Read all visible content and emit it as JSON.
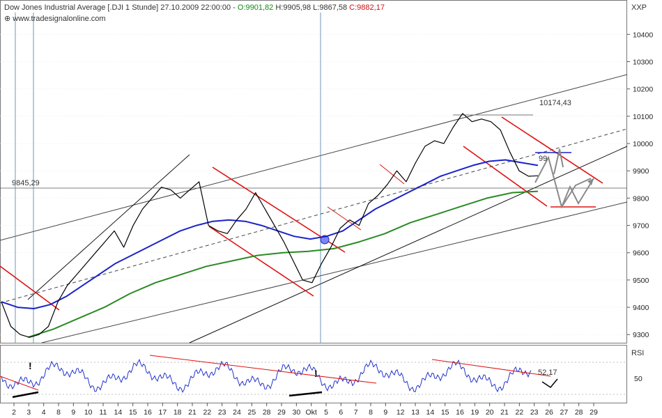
{
  "header": {
    "title": "Dow Jones Industrial Average [.DJI  1 Stunde] 27.10.2009 22:00:00 - ",
    "open": "O:9901,82",
    "high": "H:9905,98",
    "low": "L:9867,58",
    "close": "C:9882,17",
    "source": "www.tradesignalonline.com",
    "symbol": "XXP"
  },
  "rsi": {
    "label": "RSI",
    "tick": "50",
    "value_label": "52,17"
  },
  "annotations": {
    "hline_value": "9845,29",
    "peak_value": "10174,43",
    "partial_value": "99"
  },
  "colors": {
    "price": "#000000",
    "ma_fast": "#1a22c8",
    "ma_slow": "#2a8a22",
    "channel": "#e01010",
    "rsi": "#2233cc",
    "rsi_trend": "#e01010",
    "projection": "#888888"
  },
  "chart_data": {
    "type": "line",
    "title": "Dow Jones Industrial Average [.DJI  1 Stunde]",
    "timeframe": "1 Stunde",
    "xlabel": "",
    "ylabel": "",
    "ylim": [
      9270,
      10480
    ],
    "yticks": [
      9300,
      9400,
      9500,
      9600,
      9700,
      9800,
      9900,
      10000,
      10100,
      10200,
      10300,
      10400
    ],
    "ytick_labels": [
      "9300",
      "9400",
      "9500",
      "9600",
      "9700",
      "9800",
      "9900",
      "10000",
      "10100",
      "10200",
      "10300",
      "10400"
    ],
    "xtick_labels": [
      "2",
      "3",
      "4",
      "8",
      "9",
      "10",
      "11",
      "14",
      "15",
      "16",
      "17",
      "18",
      "21",
      "22",
      "23",
      "24",
      "25",
      "28",
      "29",
      "30",
      "Okt",
      "5",
      "6",
      "7",
      "8",
      "9",
      "12",
      "13",
      "14",
      "15",
      "16",
      "19",
      "20",
      "21",
      "22",
      "23",
      "26",
      "27",
      "28",
      "29"
    ],
    "grid": true,
    "series": [
      {
        "key": "price",
        "values": [
          9420,
          9330,
          9300,
          9290,
          9300,
          9330,
          9420,
          9480,
          9520,
          9560,
          9600,
          9640,
          9680,
          9620,
          9700,
          9760,
          9800,
          9840,
          9830,
          9800,
          9830,
          9860,
          9700,
          9680,
          9670,
          9720,
          9760,
          9820,
          9760,
          9700,
          9640,
          9570,
          9500,
          9490,
          9560,
          9620,
          9690,
          9720,
          9700,
          9780,
          9810,
          9850,
          9900,
          9860,
          9930,
          9990,
          10010,
          10000,
          10060,
          10110,
          10080,
          10090,
          10080,
          10050,
          9970,
          9900,
          9880,
          9882
        ]
      },
      {
        "key": "ma_fast",
        "values": [
          9420,
          9400,
          9395,
          9410,
          9440,
          9480,
          9520,
          9560,
          9590,
          9620,
          9650,
          9680,
          9700,
          9715,
          9720,
          9715,
          9700,
          9680,
          9660,
          9650,
          9660,
          9680,
          9720,
          9760,
          9790,
          9820,
          9850,
          9880,
          9900,
          9920,
          9935,
          9940,
          9930,
          9920
        ]
      },
      {
        "key": "ma_slow",
        "values": [
          9290,
          9320,
          9360,
          9400,
          9450,
          9490,
          9520,
          9550,
          9570,
          9590,
          9600,
          9605,
          9615,
          9640,
          9670,
          9710,
          9740,
          9770,
          9800,
          9820,
          9825
        ]
      }
    ],
    "rsi_ylim": [
      0,
      100
    ],
    "rsi_last": 52.17
  }
}
